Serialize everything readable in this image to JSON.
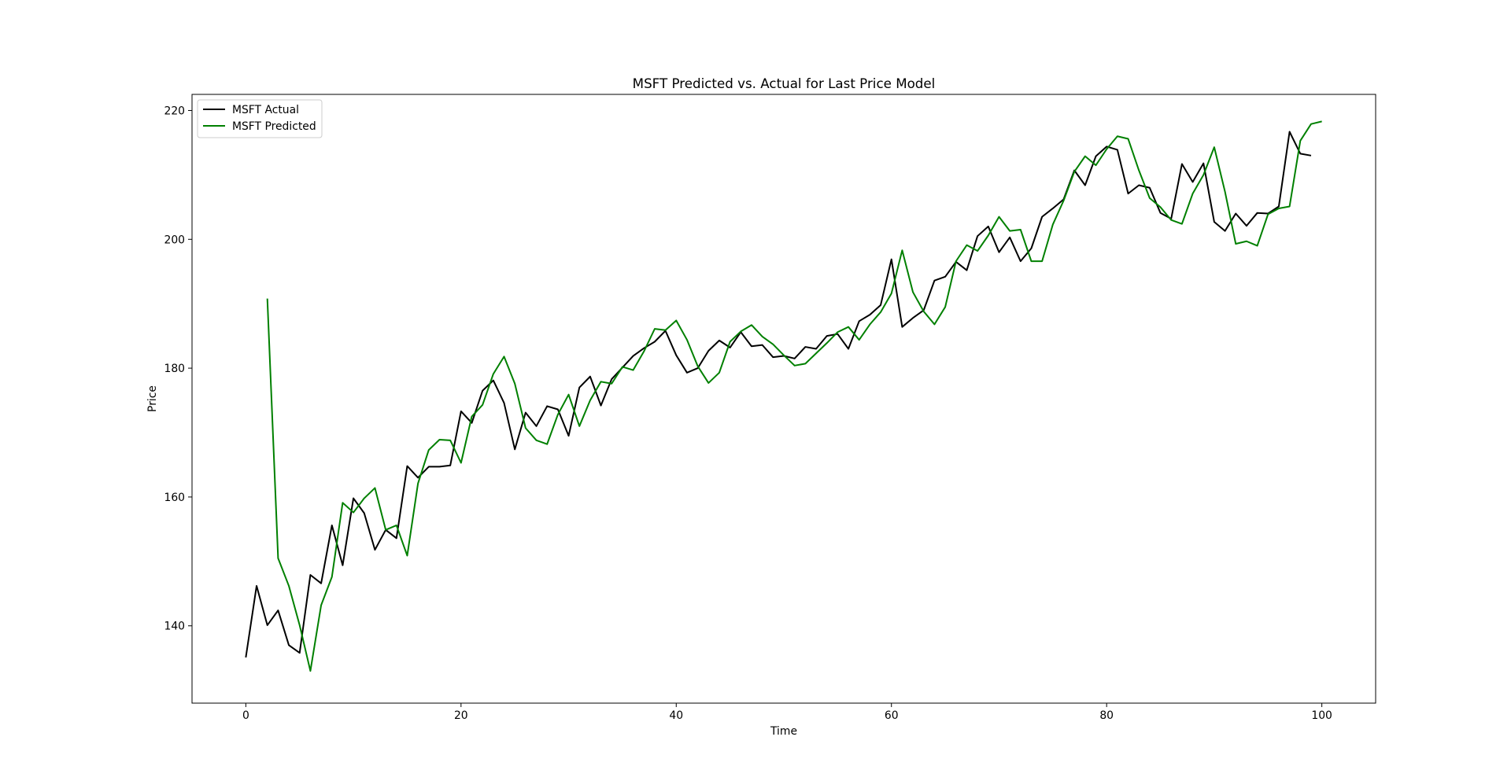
{
  "chart_data": {
    "type": "line",
    "title": "MSFT Predicted vs. Actual for Last Price Model",
    "xlabel": "Time",
    "ylabel": "Price",
    "xlim": [
      -5,
      105
    ],
    "ylim": [
      128,
      222.5
    ],
    "xticks": [
      0,
      20,
      40,
      60,
      80,
      100
    ],
    "yticks": [
      140,
      160,
      180,
      200,
      220
    ],
    "grid": false,
    "legend_position": "top-left",
    "series": [
      {
        "name": "MSFT Actual",
        "color": "#000000",
        "x_start": 0,
        "values": [
          135.1,
          146.2,
          140.1,
          142.4,
          137.0,
          135.8,
          147.9,
          146.6,
          155.6,
          149.4,
          159.8,
          157.5,
          151.8,
          154.9,
          153.6,
          164.8,
          163.0,
          164.7,
          164.7,
          164.9,
          173.3,
          171.5,
          176.5,
          178.1,
          174.6,
          167.4,
          173.1,
          171.0,
          174.1,
          173.6,
          169.5,
          177.0,
          178.7,
          174.2,
          178.3,
          180.1,
          181.9,
          183.1,
          184.1,
          185.8,
          182.0,
          179.3,
          180.0,
          182.7,
          184.3,
          183.2,
          185.6,
          183.4,
          183.6,
          181.7,
          181.9,
          181.5,
          183.3,
          183.0,
          185.0,
          185.3,
          183.0,
          187.3,
          188.3,
          189.8,
          196.9,
          186.4,
          187.8,
          189.0,
          193.6,
          194.2,
          196.5,
          195.2,
          200.5,
          202.0,
          198.0,
          200.3,
          196.6,
          198.6,
          203.5,
          204.8,
          206.2,
          210.7,
          208.4,
          212.9,
          214.4,
          213.9,
          207.1,
          208.4,
          208.0,
          204.1,
          203.2,
          211.7,
          208.9,
          211.8,
          202.7,
          201.3,
          204.0,
          202.1,
          204.1,
          204.0,
          205.1,
          216.7,
          213.3,
          213.0
        ]
      },
      {
        "name": "MSFT Predicted",
        "color": "#008000",
        "x_start": 2,
        "values": [
          190.8,
          150.5,
          146.2,
          140.1,
          133.0,
          143.2,
          147.6,
          159.1,
          157.6,
          159.8,
          161.4,
          154.9,
          155.6,
          150.9,
          162.1,
          167.3,
          168.9,
          168.8,
          165.3,
          172.5,
          174.3,
          179.1,
          181.8,
          177.6,
          170.7,
          168.8,
          168.2,
          172.8,
          175.9,
          171.0,
          175.0,
          177.9,
          177.6,
          180.2,
          179.7,
          182.6,
          186.1,
          185.9,
          187.4,
          184.4,
          180.3,
          177.7,
          179.3,
          184.1,
          185.7,
          186.7,
          184.9,
          183.7,
          182.0,
          180.4,
          180.7,
          182.3,
          183.9,
          185.6,
          186.4,
          184.4,
          186.8,
          188.7,
          191.6,
          198.3,
          191.8,
          188.8,
          186.8,
          189.5,
          196.6,
          199.1,
          198.2,
          200.6,
          203.5,
          201.3,
          201.5,
          196.6,
          196.6,
          202.3,
          206.0,
          210.5,
          212.9,
          211.5,
          214.0,
          216.0,
          215.6,
          210.7,
          206.4,
          205.0,
          203.0,
          202.4,
          207.1,
          210.0,
          214.3,
          207.4,
          199.3,
          199.7,
          199.0,
          203.9,
          204.8,
          205.1,
          215.3,
          217.9,
          218.3
        ]
      }
    ]
  }
}
